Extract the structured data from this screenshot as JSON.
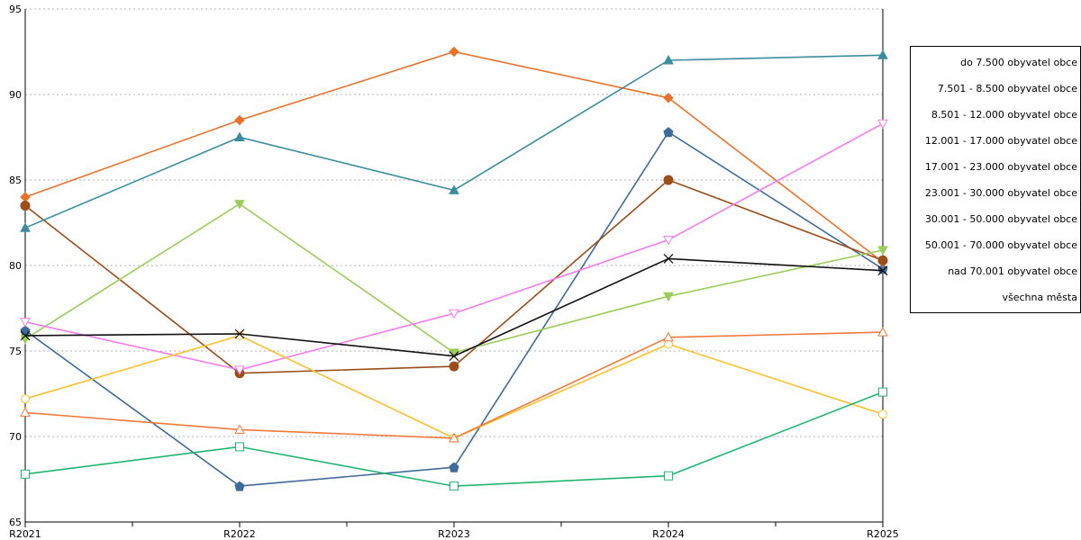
{
  "chart_data": {
    "type": "line",
    "title": "",
    "xlabel": "",
    "ylabel": "",
    "categories": [
      "R2021",
      "R2022",
      "R2023",
      "R2024",
      "R2025"
    ],
    "ylim": [
      65,
      95
    ],
    "yticks": [
      65,
      70,
      75,
      80,
      85,
      90,
      95
    ],
    "grid": "horizontal-dotted",
    "legend_position": "right",
    "series": [
      {
        "name": "do 7.500 obyvatel obce",
        "color": "#3F6B9A",
        "marker": "pentagon-filled",
        "values": [
          76.2,
          67.1,
          68.2,
          87.8,
          79.8
        ]
      },
      {
        "name": "7.501 - 8.500 obyvatel obce",
        "color": "#E8722A",
        "marker": "diamond-filled",
        "values": [
          84.0,
          88.5,
          92.5,
          89.8,
          80.2
        ]
      },
      {
        "name": "8.501 - 12.000 obyvatel obce",
        "color": "#9B4E1A",
        "marker": "circle-filled",
        "values": [
          83.5,
          73.7,
          74.1,
          85.0,
          80.3
        ]
      },
      {
        "name": "12.001 - 17.000 obyvatel obce",
        "color": "#9ACD5A",
        "marker": "triangle-down-filled",
        "values": [
          75.7,
          83.6,
          74.9,
          78.2,
          80.9
        ]
      },
      {
        "name": "17.001 - 23.000 obyvatel obce",
        "color": "#3A8C9E",
        "marker": "triangle-up-filled",
        "values": [
          82.2,
          87.5,
          84.4,
          92.0,
          92.3
        ]
      },
      {
        "name": "23.001 - 30.000 obyvatel obce",
        "color": "#F27DEB",
        "marker": "triangle-down-open",
        "values": [
          76.7,
          73.9,
          77.2,
          81.5,
          88.3
        ]
      },
      {
        "name": "30.001 - 50.000 obyvatel obce",
        "color": "#FBC02D",
        "marker": "circle-open",
        "values": [
          72.2,
          75.9,
          69.9,
          75.4,
          71.3
        ]
      },
      {
        "name": "50.001 - 70.000 obyvatel obce",
        "color": "#F07A3A",
        "marker": "triangle-up-open",
        "values": [
          71.4,
          70.4,
          69.9,
          75.8,
          76.1
        ]
      },
      {
        "name": "nad 70.001 obyvatel obce",
        "color": "#20B56E",
        "marker": "square-open",
        "values": [
          67.8,
          69.4,
          67.1,
          67.7,
          72.6
        ]
      },
      {
        "name": "všechna města",
        "color": "#111111",
        "marker": "x",
        "values": [
          75.9,
          76.0,
          74.7,
          80.4,
          79.7
        ]
      }
    ]
  }
}
